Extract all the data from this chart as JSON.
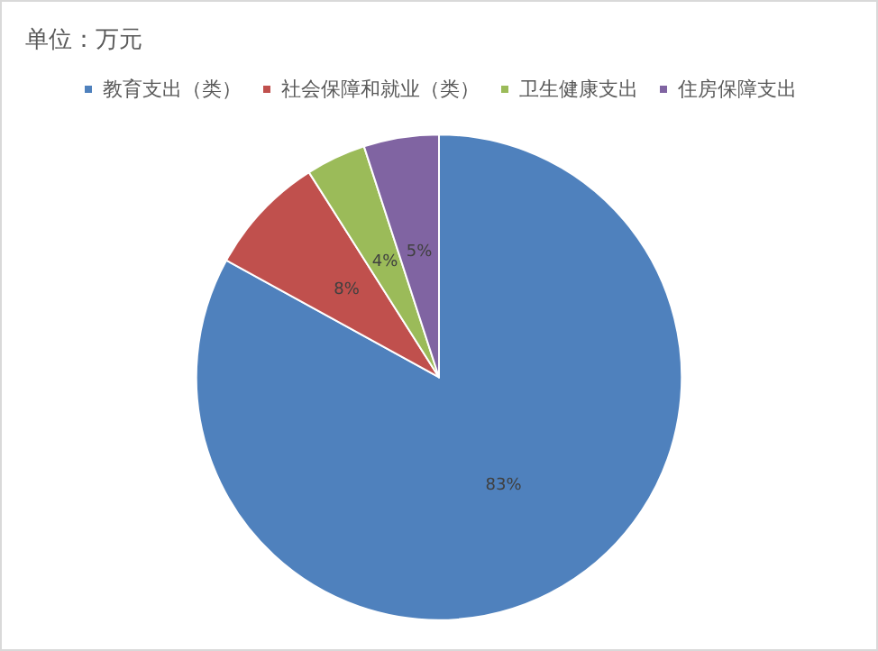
{
  "chart_data": {
    "type": "pie",
    "title": "单位：万元",
    "categories": [
      "教育支出（类）",
      "社会保障和就业（类）",
      "卫生健康支出",
      "住房保障支出"
    ],
    "values": [
      83,
      8,
      4,
      5
    ],
    "colors": [
      "#4f81bd",
      "#c0504d",
      "#9bbb59",
      "#8064a2"
    ],
    "legend": "top",
    "value_labels": [
      "83%",
      "8%",
      "4%",
      "5%"
    ]
  }
}
